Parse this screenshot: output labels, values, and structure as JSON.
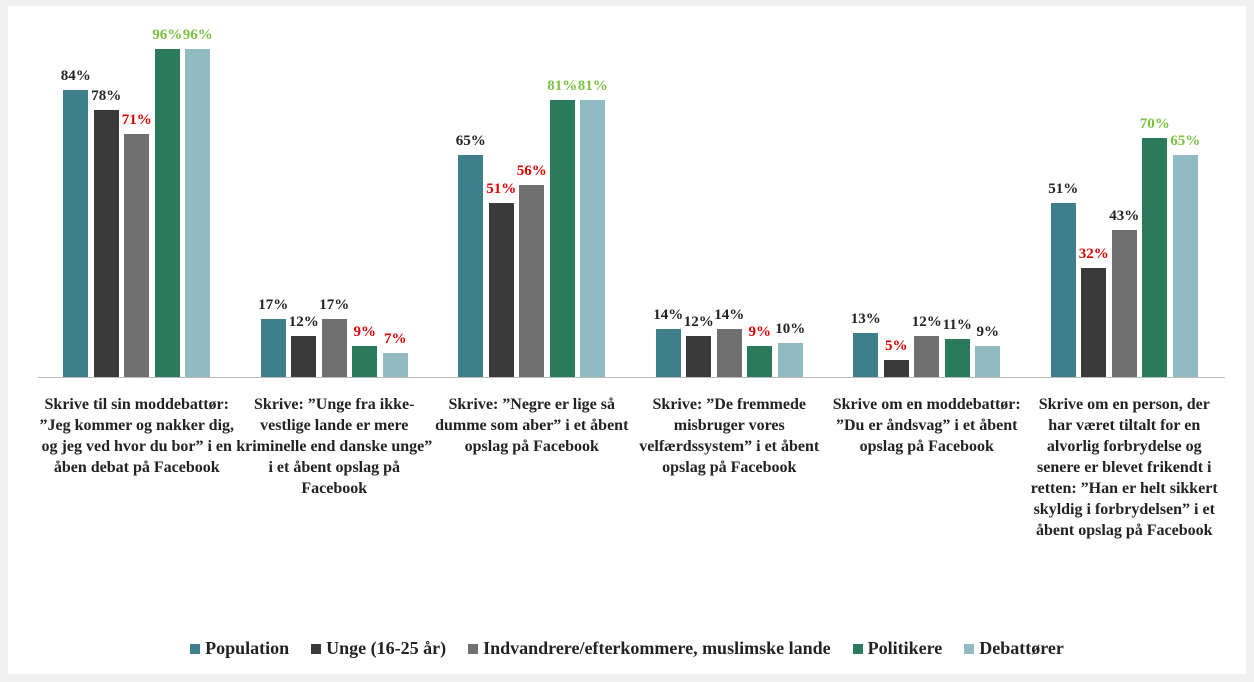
{
  "chart_data": {
    "type": "bar",
    "categories": [
      "Skrive til sin moddebattør: ”Jeg kommer og nakker dig, og jeg ved hvor du bor” i en åben debat på Facebook",
      "Skrive: ”Unge fra ikke-vestlige lande er mere kriminelle end danske unge” i et åbent opslag på Facebook",
      "Skrive: ”Negre er lige så dumme som aber” i et åbent opslag på Facebook",
      "Skrive: ”De fremmede misbruger vores velfærdssystem” i et åbent opslag på Facebook",
      "Skrive om en moddebattør: ”Du er åndsvag” i et åbent opslag på Facebook",
      "Skrive om en person, der har været tiltalt for en alvorlig forbrydelse og senere er blevet frikendt i retten: ”Han er helt sikkert skyldig i forbrydelsen” i et åbent opslag på Facebook"
    ],
    "series": [
      {
        "name": "Population",
        "color": "#3e7f8b",
        "values": [
          84,
          17,
          65,
          14,
          13,
          51
        ],
        "value_labels": [
          "84%",
          "17%",
          "65%",
          "14%",
          "13%",
          "51%"
        ],
        "label_colors": [
          "#222",
          "#222",
          "#222",
          "#222",
          "#222",
          "#222"
        ]
      },
      {
        "name": "Unge (16-25 år)",
        "color": "#3a3a3a",
        "values": [
          78,
          12,
          51,
          12,
          5,
          32
        ],
        "value_labels": [
          "78%",
          "12%",
          "51%",
          "12%",
          "5%",
          "32%"
        ],
        "label_colors": [
          "#222",
          "#222",
          "#e00000",
          "#222",
          "#e00000",
          "#e00000"
        ]
      },
      {
        "name": "Indvandrere/efterkommere, muslimske lande",
        "color": "#707070",
        "values": [
          71,
          17,
          56,
          14,
          12,
          43
        ],
        "value_labels": [
          "71%",
          "17%",
          "56%",
          "14%",
          "12%",
          "43%"
        ],
        "label_colors": [
          "#e00000",
          "#222",
          "#e00000",
          "#222",
          "#222",
          "#222"
        ]
      },
      {
        "name": "Politikere",
        "color": "#2a7a5c",
        "values": [
          96,
          9,
          81,
          9,
          11,
          70
        ],
        "value_labels": [
          "96%",
          "9%",
          "81%",
          "9%",
          "11%",
          "70%"
        ],
        "label_colors": [
          "#7ac142",
          "#e00000",
          "#7ac142",
          "#e00000",
          "#222",
          "#7ac142"
        ]
      },
      {
        "name": "Debattører",
        "color": "#92bac3",
        "values": [
          96,
          7,
          81,
          10,
          9,
          65
        ],
        "value_labels": [
          "96%",
          "7%",
          "81%",
          "10%",
          "9%",
          "65%"
        ],
        "label_colors": [
          "#7ac142",
          "#e00000",
          "#7ac142",
          "#222",
          "#222",
          "#7ac142"
        ]
      }
    ],
    "ylim": [
      0,
      100
    ],
    "legend": "bottom"
  }
}
